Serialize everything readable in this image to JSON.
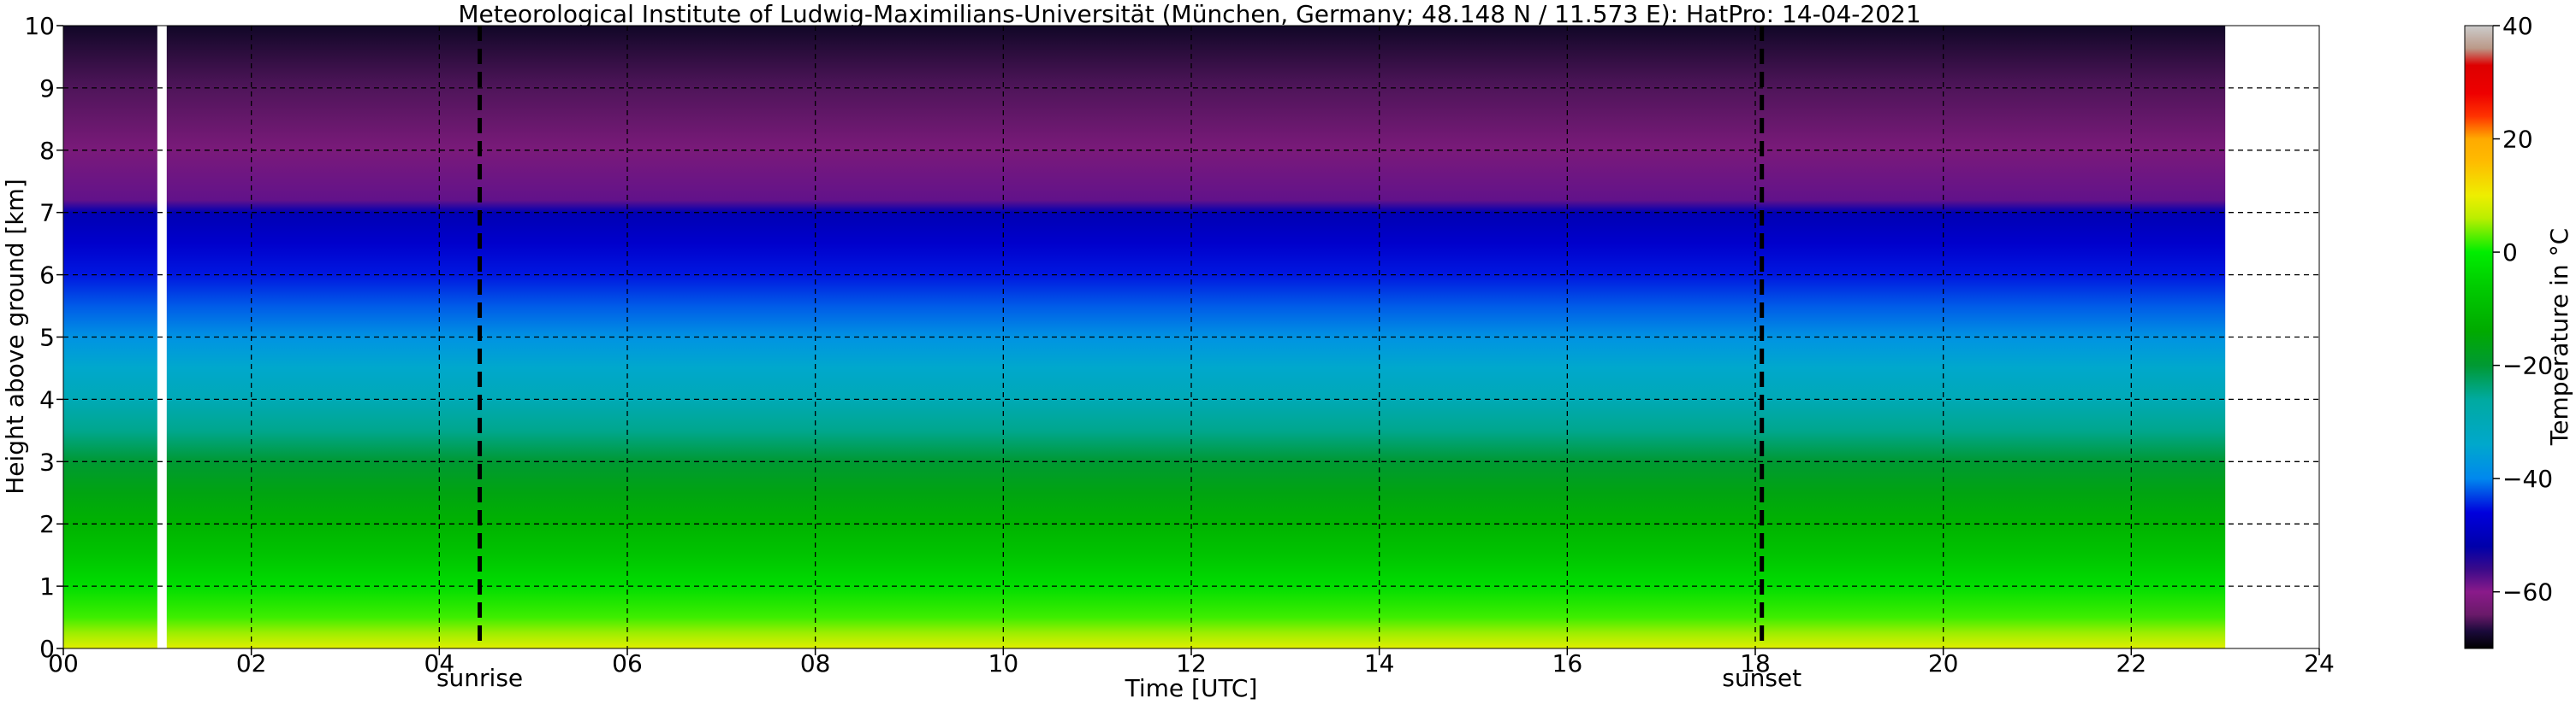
{
  "chart_data": {
    "type": "heatmap",
    "title": "Meteorological Institute of Ludwig-Maximilians-Universität (München, Germany; 48.148 N / 11.573 E):    HatPro: 14-04-2021",
    "xlabel": "Time [UTC]",
    "ylabel": "Height above ground [km]",
    "xlim": [
      0,
      24
    ],
    "ylim": [
      0,
      10
    ],
    "x_ticks": [
      "00",
      "02",
      "04",
      "06",
      "08",
      "10",
      "12",
      "14",
      "16",
      "18",
      "20",
      "22",
      "24"
    ],
    "y_ticks": [
      "0",
      "1",
      "2",
      "3",
      "4",
      "5",
      "6",
      "7",
      "8",
      "9",
      "10"
    ],
    "data_extent_hours": [
      0,
      23
    ],
    "gaps_hours": [
      [
        1.0,
        1.1
      ]
    ],
    "grid": true,
    "vertical_markers": [
      {
        "label": "sunrise",
        "x": 4.43
      },
      {
        "label": "sunset",
        "x": 18.07
      }
    ],
    "temperature_profile": {
      "heights_km": [
        0,
        0.25,
        0.5,
        1,
        1.5,
        2,
        2.5,
        3,
        3.5,
        4,
        4.5,
        5,
        5.5,
        6,
        6.5,
        7,
        7.2,
        8,
        9,
        10
      ],
      "temperature_c": [
        9,
        5,
        2,
        -3,
        -8,
        -12,
        -16,
        -20,
        -25,
        -30,
        -34,
        -38,
        -42,
        -45,
        -48,
        -51,
        -58,
        -62,
        -65,
        -68
      ]
    },
    "colorbar": {
      "label": "Temperature in °C",
      "min": -70,
      "max": 40,
      "ticks": [
        "40",
        "20",
        "0",
        "−20",
        "−40",
        "−60"
      ],
      "colors": [
        {
          "t": -70,
          "c": "#000000"
        },
        {
          "t": -67,
          "c": "#1a0a3a"
        },
        {
          "t": -64,
          "c": "#6a1a6a"
        },
        {
          "t": -60,
          "c": "#8a1a8a"
        },
        {
          "t": -56,
          "c": "#3a0a8a"
        },
        {
          "t": -52,
          "c": "#0000aa"
        },
        {
          "t": -46,
          "c": "#0000dd"
        },
        {
          "t": -40,
          "c": "#0088ee"
        },
        {
          "t": -34,
          "c": "#00a8cc"
        },
        {
          "t": -26,
          "c": "#00aaa0"
        },
        {
          "t": -20,
          "c": "#009933"
        },
        {
          "t": -14,
          "c": "#00aa00"
        },
        {
          "t": -6,
          "c": "#00cc00"
        },
        {
          "t": 0,
          "c": "#00ee00"
        },
        {
          "t": 6,
          "c": "#bbee00"
        },
        {
          "t": 10,
          "c": "#eeee00"
        },
        {
          "t": 16,
          "c": "#ffbb00"
        },
        {
          "t": 20,
          "c": "#ffaa00"
        },
        {
          "t": 24,
          "c": "#ff3300"
        },
        {
          "t": 28,
          "c": "#ee0000"
        },
        {
          "t": 33,
          "c": "#dd0000"
        },
        {
          "t": 36,
          "c": "#bb9988"
        },
        {
          "t": 40,
          "c": "#cccccc"
        }
      ]
    }
  }
}
